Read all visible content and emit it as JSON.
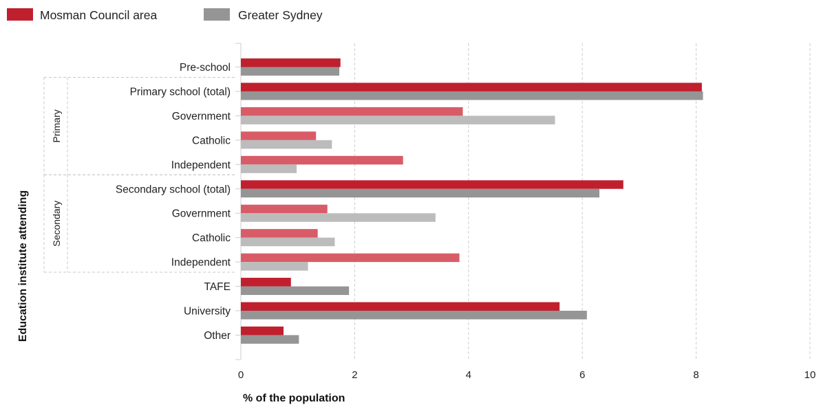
{
  "chart_data": {
    "type": "bar",
    "orientation": "horizontal",
    "xlabel": "% of the population",
    "ylabel": "Education institute attending",
    "xlim": [
      0,
      10
    ],
    "xticks": [
      0,
      2,
      4,
      6,
      8,
      10
    ],
    "grid": "vertical dashed",
    "legend_position": "top-left",
    "categories": [
      "Pre-school",
      "Primary school (total)",
      "Government",
      "Catholic",
      "Independent",
      "Secondary school (total)",
      "Government",
      "Catholic",
      "Independent",
      "TAFE",
      "University",
      "Other"
    ],
    "category_style": [
      "main",
      "main",
      "sub",
      "sub",
      "sub",
      "main",
      "sub",
      "sub",
      "sub",
      "main",
      "main",
      "main"
    ],
    "groups": [
      {
        "label": "Primary",
        "from": 1,
        "to": 4
      },
      {
        "label": "Secondary",
        "from": 5,
        "to": 8
      }
    ],
    "series": [
      {
        "name": "Mosman Council area",
        "color": "#c0202e",
        "light_color": "#d85c67",
        "values": [
          1.75,
          8.1,
          3.9,
          1.32,
          2.85,
          6.72,
          1.52,
          1.35,
          3.84,
          0.88,
          5.6,
          0.75
        ]
      },
      {
        "name": "Greater Sydney",
        "color": "#959595",
        "light_color": "#bcbcbc",
        "values": [
          1.73,
          8.12,
          5.52,
          1.6,
          0.98,
          6.3,
          3.42,
          1.65,
          1.18,
          1.9,
          6.08,
          1.02
        ]
      }
    ]
  }
}
